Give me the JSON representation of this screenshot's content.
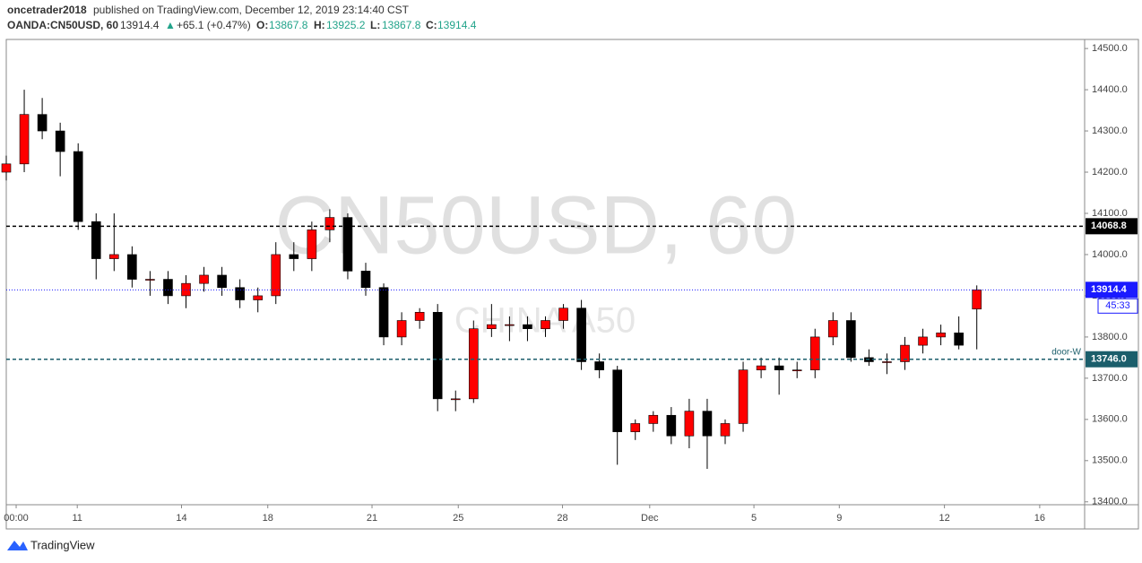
{
  "header": {
    "publisher": "oncetrader2018",
    "published": "published on TradingView.com, December 12, 2019 23:14:40 CST",
    "symbol": "OANDA:CN50USD, 60",
    "last": "13914.4",
    "arrow": "▲",
    "change": "+65.1 (+0.47%)",
    "o_label": "O:",
    "o": "13867.8",
    "h_label": "H:",
    "h": "13925.2",
    "l_label": "L:",
    "l": "13867.8",
    "c_label": "C:",
    "c": "13914.4"
  },
  "chart_data": {
    "type": "candlestick",
    "watermark": "CN50USD, 60",
    "watermark_sub": "CHINA A50",
    "x": [
      0,
      2,
      4,
      6,
      8,
      10,
      12,
      14,
      16,
      18,
      20,
      22,
      24,
      26,
      28,
      30,
      32,
      34,
      36,
      38,
      40,
      42,
      44,
      46,
      48,
      50,
      52,
      54,
      56,
      58,
      60,
      62,
      64,
      66,
      68,
      70,
      72,
      74,
      76,
      78,
      80,
      82,
      84,
      86,
      88,
      90,
      92,
      94,
      96,
      98,
      100,
      102,
      104,
      106,
      108
    ],
    "open": [
      14200,
      14220,
      14340,
      14300,
      14250,
      14080,
      13990,
      14000,
      13940,
      13940,
      13900,
      13930,
      13950,
      13920,
      13890,
      13900,
      14000,
      13990,
      14060,
      14090,
      13960,
      13920,
      13800,
      13840,
      13860,
      13650,
      13650,
      13820,
      13830,
      13830,
      13820,
      13840,
      13870,
      13740,
      13720,
      13570,
      13590,
      13610,
      13560,
      13620,
      13560,
      13590,
      13720,
      13730,
      13720,
      13720,
      13800,
      13840,
      13750,
      13740,
      13740,
      13780,
      13800,
      13810,
      13867.8
    ],
    "high": [
      14240,
      14400,
      14380,
      14320,
      14270,
      14100,
      14100,
      14020,
      13960,
      13960,
      13950,
      13970,
      13970,
      13940,
      13920,
      14030,
      14030,
      14080,
      14110,
      14100,
      13980,
      13930,
      13860,
      13870,
      13880,
      13670,
      13840,
      13880,
      13850,
      13850,
      13850,
      13880,
      13890,
      13760,
      13730,
      13600,
      13620,
      13630,
      13650,
      13650,
      13600,
      13740,
      13750,
      13750,
      13740,
      13820,
      13860,
      13860,
      13770,
      13760,
      13800,
      13820,
      13830,
      13850,
      13925.2
    ],
    "low": [
      14180,
      14200,
      14280,
      14190,
      14060,
      13940,
      13960,
      13920,
      13900,
      13880,
      13870,
      13910,
      13900,
      13870,
      13860,
      13880,
      13960,
      13960,
      14030,
      13940,
      13900,
      13780,
      13780,
      13820,
      13620,
      13620,
      13640,
      13800,
      13790,
      13790,
      13800,
      13820,
      13720,
      13700,
      13490,
      13550,
      13570,
      13540,
      13530,
      13480,
      13540,
      13570,
      13700,
      13660,
      13700,
      13700,
      13780,
      13740,
      13730,
      13710,
      13720,
      13760,
      13780,
      13770,
      13770
    ],
    "close": [
      14220,
      14340,
      14300,
      14250,
      14080,
      13990,
      14000,
      13940,
      13940,
      13900,
      13930,
      13950,
      13920,
      13890,
      13900,
      14000,
      13990,
      14060,
      14090,
      13960,
      13920,
      13800,
      13840,
      13860,
      13650,
      13650,
      13820,
      13830,
      13830,
      13820,
      13840,
      13870,
      13740,
      13720,
      13570,
      13590,
      13610,
      13560,
      13620,
      13560,
      13590,
      13720,
      13730,
      13720,
      13720,
      13800,
      13840,
      13750,
      13740,
      13740,
      13780,
      13800,
      13810,
      13780,
      13914.4
    ],
    "up_color": "#ff0000",
    "down_color": "#000000",
    "xlim": [
      0,
      120
    ],
    "xticks": [
      {
        "value": 1.1,
        "label": "00:00"
      },
      {
        "value": 7.9,
        "label": "11"
      },
      {
        "value": 19.5,
        "label": "14"
      },
      {
        "value": 29.1,
        "label": "18"
      },
      {
        "value": 40.7,
        "label": "21"
      },
      {
        "value": 50.3,
        "label": "25"
      },
      {
        "value": 61.9,
        "label": "28"
      },
      {
        "value": 71.6,
        "label": "Dec"
      },
      {
        "value": 83.2,
        "label": "5"
      },
      {
        "value": 92.7,
        "label": "9"
      },
      {
        "value": 104.4,
        "label": "12"
      },
      {
        "value": 115.0,
        "label": "16"
      }
    ],
    "ylim": [
      13393,
      14522
    ],
    "yticks": [
      {
        "value": 13400,
        "label": "13400.0"
      },
      {
        "value": 13500,
        "label": "13500.0"
      },
      {
        "value": 13600,
        "label": "13600.0"
      },
      {
        "value": 13700,
        "label": "13700.0"
      },
      {
        "value": 13800,
        "label": "13800.0"
      },
      {
        "value": 13900,
        "label": "13900.0"
      },
      {
        "value": 14000,
        "label": "14000.0"
      },
      {
        "value": 14100,
        "label": "14100.0"
      },
      {
        "value": 14200,
        "label": "14200.0"
      },
      {
        "value": 14300,
        "label": "14300.0"
      },
      {
        "value": 14400,
        "label": "14400.0"
      },
      {
        "value": 14500,
        "label": "14500.0"
      }
    ],
    "hlines": [
      {
        "value": 14068.8,
        "label": "14068.8",
        "color": "#000000",
        "style": "dashed"
      },
      {
        "value": 13914.4,
        "label": "13914.4",
        "color": "#1a1aff",
        "style": "dotted",
        "countdown": "45:33"
      },
      {
        "value": 13746.0,
        "label": "13746.0",
        "color": "#1b5e6b",
        "style": "dashed",
        "name": "door-W"
      }
    ]
  },
  "footer": {
    "brand": "TradingView"
  }
}
